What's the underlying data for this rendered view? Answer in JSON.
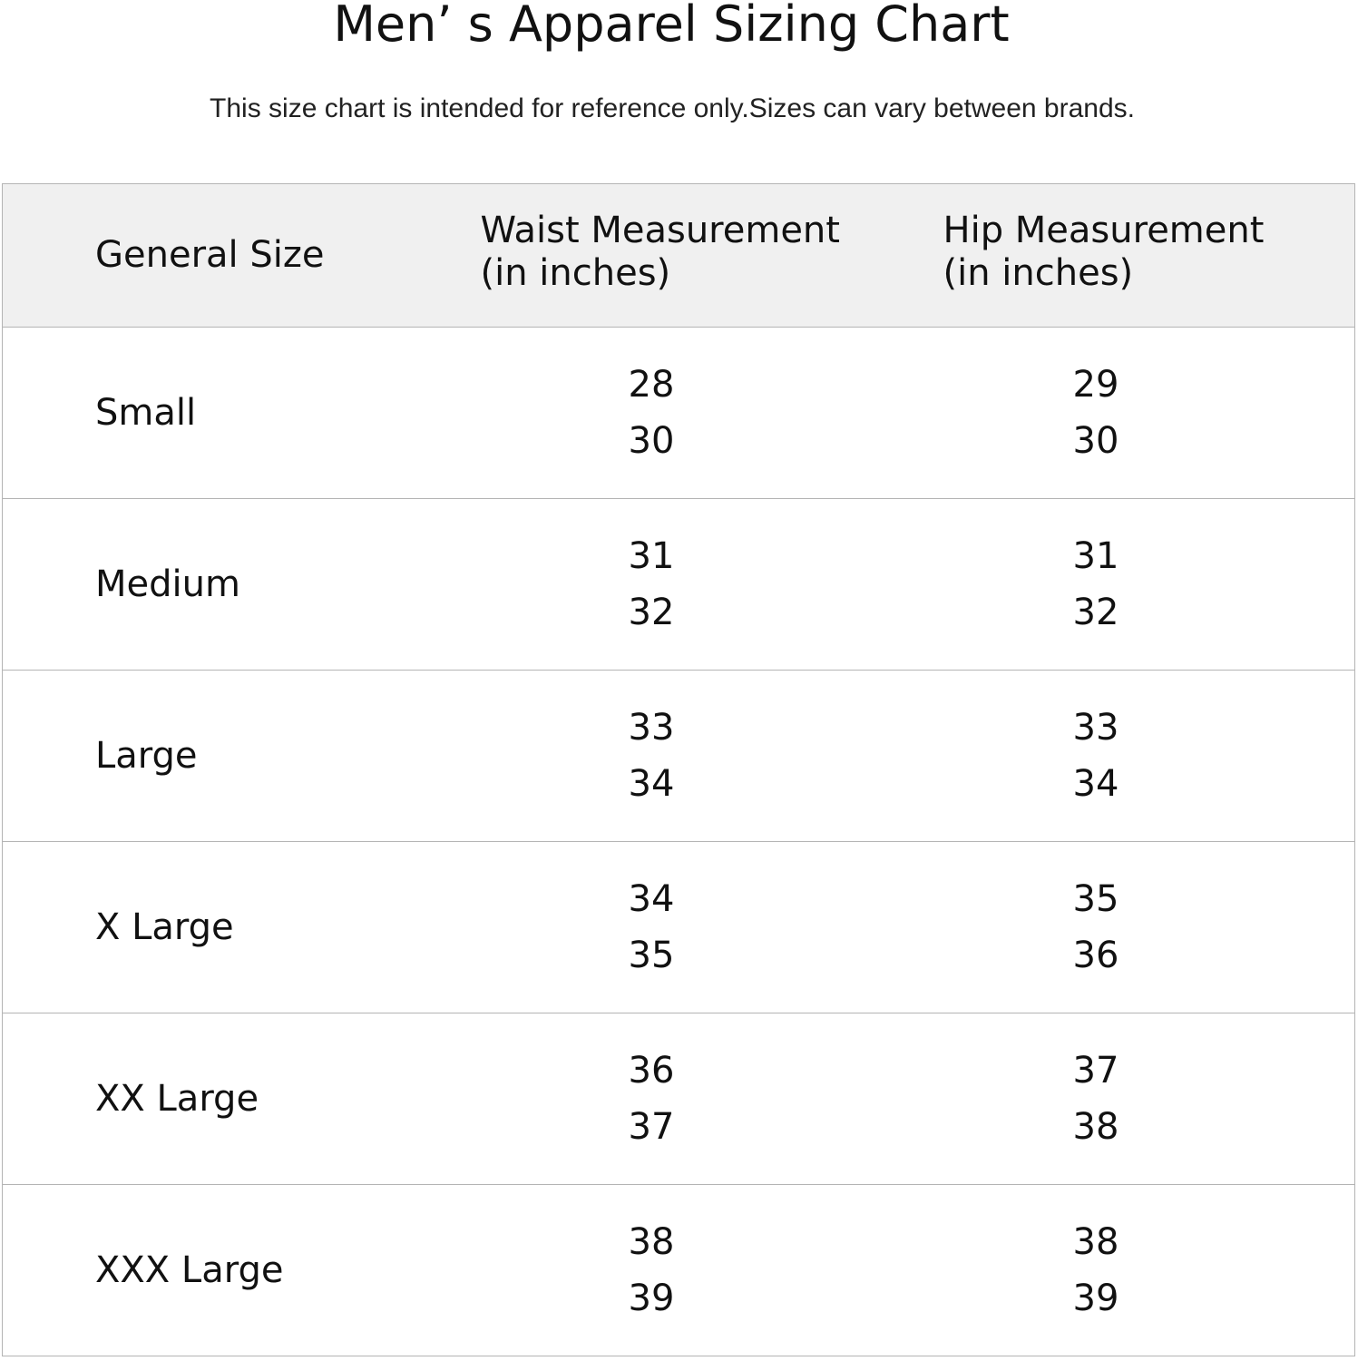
{
  "page": {
    "title": "Men’  s Apparel Sizing Chart",
    "subtitle": "This size chart is intended for reference only.Sizes can vary between brands."
  },
  "table": {
    "headers": {
      "size": "General Size",
      "waist_line1": "Waist Measurement",
      "waist_line2": "(in inches)",
      "hip_line1": "Hip Measurement",
      "hip_line2": "(in inches)"
    },
    "rows": [
      {
        "size": "Small",
        "waist_min": "28",
        "waist_max": "30",
        "hip_min": "29",
        "hip_max": "30"
      },
      {
        "size": "Medium",
        "waist_min": "31",
        "waist_max": "32",
        "hip_min": "31",
        "hip_max": "32"
      },
      {
        "size": "Large",
        "waist_min": "33",
        "waist_max": "34",
        "hip_min": "33",
        "hip_max": "34"
      },
      {
        "size": "X Large",
        "waist_min": "34",
        "waist_max": "35",
        "hip_min": "35",
        "hip_max": "36"
      },
      {
        "size": "XX Large",
        "waist_min": "36",
        "waist_max": "37",
        "hip_min": "37",
        "hip_max": "38"
      },
      {
        "size": "XXX Large",
        "waist_min": "38",
        "waist_max": "39",
        "hip_min": "38",
        "hip_max": "39"
      }
    ]
  },
  "colors": {
    "header_background": "#f0f0f0",
    "border": "#b4b4b4",
    "text": "#111111"
  }
}
